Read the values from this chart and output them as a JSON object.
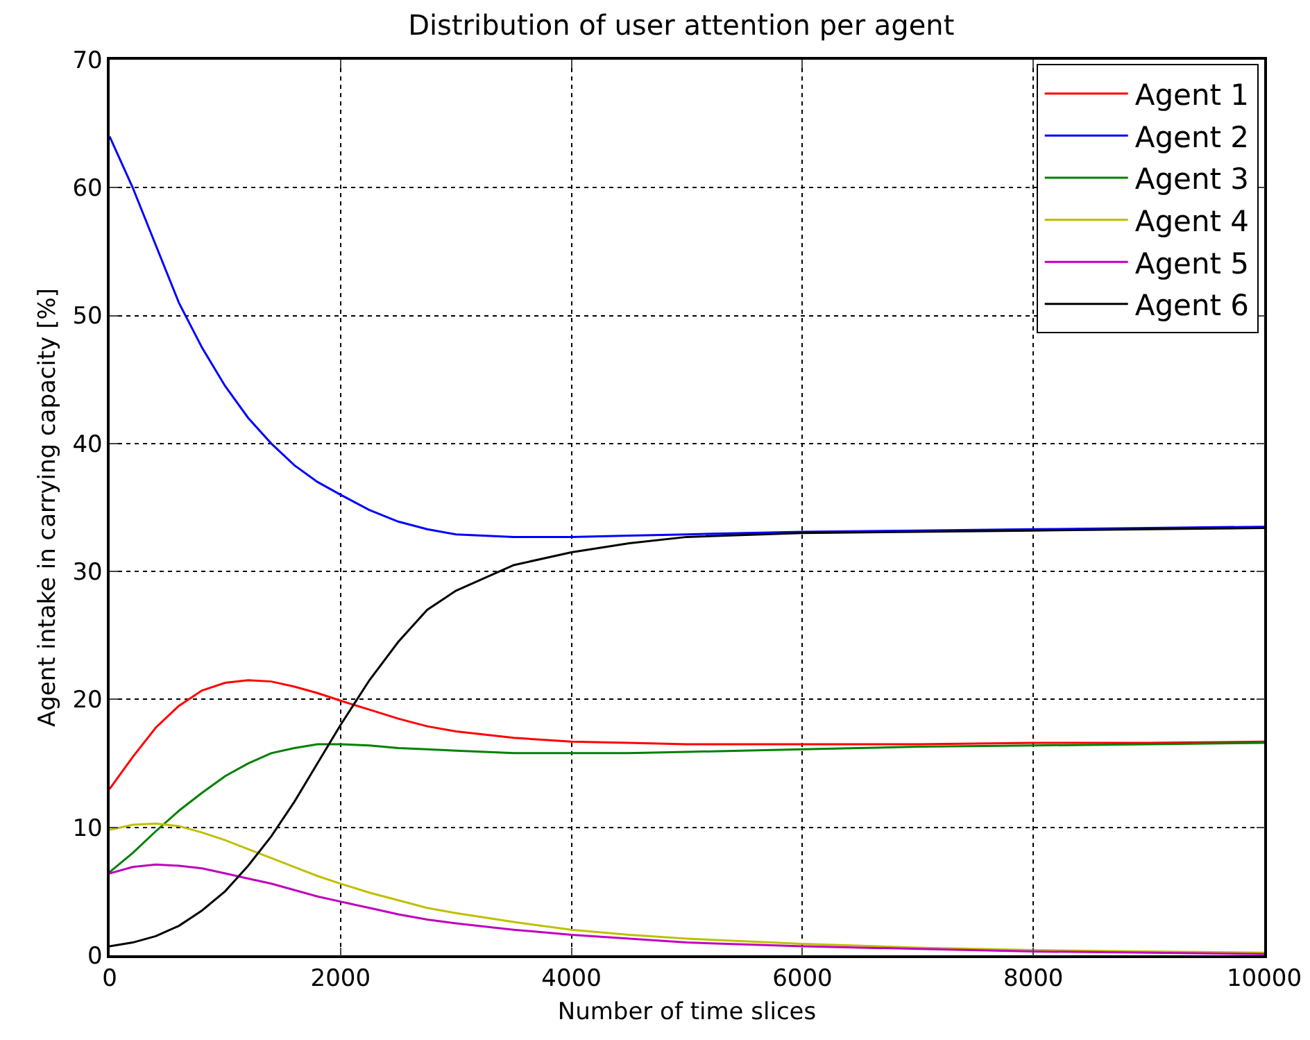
{
  "chart_data": {
    "type": "line",
    "title": "Distribution of user attention per agent",
    "xlabel": "Number of time slices",
    "ylabel": "Agent intake in carrying capacity [%]",
    "x": [
      0,
      200,
      400,
      600,
      800,
      1000,
      1200,
      1400,
      1600,
      1800,
      2000,
      2250,
      2500,
      2750,
      3000,
      3500,
      4000,
      4500,
      5000,
      6000,
      7000,
      8000,
      9000,
      10000
    ],
    "series": [
      {
        "name": "Agent 1",
        "color": "#ff0000",
        "values": [
          13,
          15.5,
          17.8,
          19.5,
          20.7,
          21.3,
          21.5,
          21.4,
          21,
          20.5,
          19.9,
          19.2,
          18.5,
          17.9,
          17.5,
          17,
          16.7,
          16.6,
          16.5,
          16.5,
          16.5,
          16.6,
          16.6,
          16.7
        ]
      },
      {
        "name": "Agent 2",
        "color": "#0000ff",
        "values": [
          64,
          60,
          55.5,
          51,
          47.5,
          44.5,
          42,
          40,
          38.3,
          37,
          36,
          34.8,
          33.9,
          33.3,
          32.9,
          32.7,
          32.7,
          32.8,
          32.9,
          33.1,
          33.2,
          33.3,
          33.4,
          33.5
        ]
      },
      {
        "name": "Agent 3",
        "color": "#008000",
        "values": [
          6.5,
          8,
          9.7,
          11.3,
          12.7,
          14,
          15,
          15.8,
          16.2,
          16.5,
          16.5,
          16.4,
          16.2,
          16.1,
          16,
          15.8,
          15.8,
          15.8,
          15.9,
          16.1,
          16.3,
          16.4,
          16.5,
          16.6
        ]
      },
      {
        "name": "Agent 4",
        "color": "#bfbf00",
        "values": [
          9.8,
          10.2,
          10.3,
          10.1,
          9.6,
          9,
          8.3,
          7.6,
          6.9,
          6.2,
          5.6,
          4.9,
          4.3,
          3.7,
          3.3,
          2.6,
          2,
          1.6,
          1.3,
          0.9,
          0.6,
          0.4,
          0.3,
          0.2
        ]
      },
      {
        "name": "Agent 5",
        "color": "#bf00bf",
        "values": [
          6.4,
          6.9,
          7.1,
          7,
          6.8,
          6.4,
          6,
          5.6,
          5.1,
          4.6,
          4.2,
          3.7,
          3.2,
          2.8,
          2.5,
          2,
          1.6,
          1.3,
          1,
          0.7,
          0.5,
          0.3,
          0.2,
          0.1
        ]
      },
      {
        "name": "Agent 6",
        "color": "#000000",
        "values": [
          0.7,
          1,
          1.5,
          2.3,
          3.5,
          5,
          7,
          9.3,
          12,
          15,
          18,
          21.5,
          24.5,
          27,
          28.5,
          30.5,
          31.5,
          32.2,
          32.7,
          33,
          33.1,
          33.2,
          33.3,
          33.4
        ]
      }
    ],
    "xlim": [
      0,
      10000
    ],
    "xticks": [
      0,
      2000,
      4000,
      6000,
      8000,
      10000
    ],
    "ylim": [
      0,
      70
    ],
    "yticks": [
      0,
      10,
      20,
      30,
      40,
      50,
      60,
      70
    ],
    "grid": true,
    "legend": "top right",
    "marker": "none",
    "line_style": "solid"
  }
}
